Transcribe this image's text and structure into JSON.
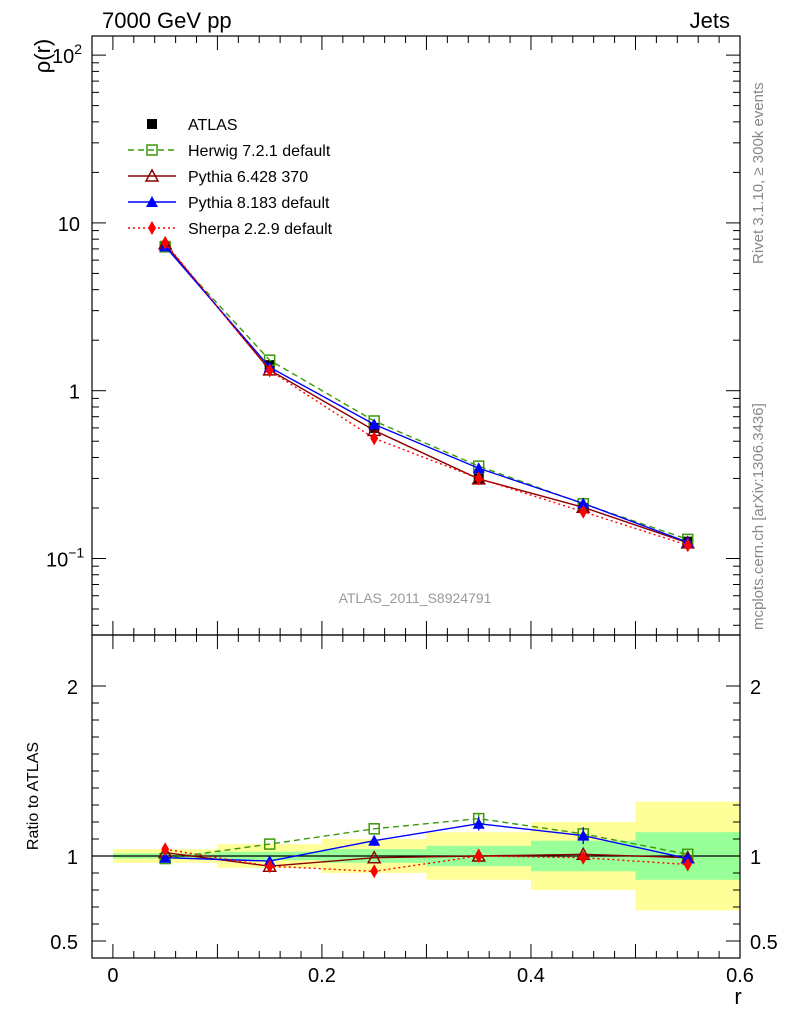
{
  "header": {
    "left_title": "7000 GeV pp",
    "right_title": "Jets",
    "side_text_1": "Rivet 3.1.10, ≥ 300k events",
    "side_text_2": "mcplots.cern.ch [arXiv:1306.3436]",
    "watermark": "ATLAS_2011_S8924791"
  },
  "chart_data": [
    {
      "type": "line",
      "scale": "log",
      "ylabel": "ρ(r)",
      "xlabel": "r",
      "xlim": [
        -0.02,
        0.6
      ],
      "ylim": [
        0.035,
        130
      ],
      "yticks": [
        {
          "value": 0.1,
          "base": "10",
          "exp": "−1"
        },
        {
          "value": 1,
          "label": "1"
        },
        {
          "value": 10,
          "label": "10"
        },
        {
          "value": 100,
          "base": "10",
          "exp": "2"
        }
      ],
      "x": [
        0.05,
        0.15,
        0.25,
        0.35,
        0.45,
        0.55
      ],
      "series": [
        {
          "name": "ATLAS",
          "color": "#000000",
          "marker": "square-filled",
          "line": "none",
          "values": [
            7.3,
            1.42,
            0.6,
            0.3,
            0.2,
            0.126
          ]
        },
        {
          "name": "Herwig 7.2.1 default",
          "color": "#3a9a0a",
          "marker": "square-open",
          "line": "dashed",
          "values": [
            7.2,
            1.52,
            0.66,
            0.355,
            0.212,
            0.13
          ]
        },
        {
          "name": "Pythia 6.428 370",
          "color": "#8b0000",
          "marker": "triangle-open",
          "line": "solid",
          "values": [
            7.5,
            1.33,
            0.58,
            0.298,
            0.202,
            0.124
          ]
        },
        {
          "name": "Pythia 8.183 default",
          "color": "#0000ff",
          "marker": "triangle-filled",
          "line": "solid",
          "values": [
            7.25,
            1.38,
            0.63,
            0.345,
            0.213,
            0.125
          ]
        },
        {
          "name": "Sherpa 2.2.9 default",
          "color": "#ff0000",
          "marker": "diamond-filled",
          "line": "dotted",
          "values": [
            7.6,
            1.32,
            0.52,
            0.3,
            0.19,
            0.12
          ]
        }
      ]
    },
    {
      "type": "line",
      "ylabel": "Ratio to ATLAS",
      "xlabel": "r",
      "xlim": [
        -0.02,
        0.6
      ],
      "ylim": [
        0.4,
        2.3
      ],
      "yticks": [
        0.5,
        1,
        2
      ],
      "xticks": [
        0,
        0.2,
        0.4,
        0.6
      ],
      "x": [
        0.05,
        0.15,
        0.25,
        0.35,
        0.45,
        0.55
      ],
      "bands": [
        {
          "x0": 0.0,
          "x1": 0.1,
          "stat": [
            0.985,
            1.015
          ],
          "total": [
            0.96,
            1.04
          ]
        },
        {
          "x0": 0.1,
          "x1": 0.2,
          "stat": [
            0.975,
            1.025
          ],
          "total": [
            0.93,
            1.07
          ]
        },
        {
          "x0": 0.2,
          "x1": 0.3,
          "stat": [
            0.96,
            1.04
          ],
          "total": [
            0.9,
            1.1
          ]
        },
        {
          "x0": 0.3,
          "x1": 0.4,
          "stat": [
            0.94,
            1.06
          ],
          "total": [
            0.86,
            1.14
          ]
        },
        {
          "x0": 0.4,
          "x1": 0.5,
          "stat": [
            0.91,
            1.09
          ],
          "total": [
            0.8,
            1.2
          ]
        },
        {
          "x0": 0.5,
          "x1": 0.6,
          "stat": [
            0.86,
            1.14
          ],
          "total": [
            0.68,
            1.32
          ]
        }
      ],
      "series": [
        {
          "name": "Herwig 7.2.1 default",
          "values": [
            0.985,
            1.07,
            1.16,
            1.22,
            1.13,
            1.01
          ],
          "errors": [
            0,
            0,
            0,
            0.03,
            0.03,
            0
          ]
        },
        {
          "name": "Pythia 6.428 370",
          "values": [
            1.02,
            0.94,
            0.99,
            1.0,
            1.01,
            0.99
          ],
          "errors": [
            0,
            0,
            0,
            0,
            0,
            0
          ]
        },
        {
          "name": "Pythia 8.183 default",
          "values": [
            0.99,
            0.97,
            1.09,
            1.19,
            1.12,
            0.985
          ],
          "errors": [
            0,
            0.02,
            0.03,
            0.04,
            0.05,
            0.02
          ]
        },
        {
          "name": "Sherpa 2.2.9 default",
          "values": [
            1.04,
            0.94,
            0.91,
            1.0,
            0.99,
            0.95
          ],
          "errors": [
            0,
            0,
            0,
            0,
            0,
            0
          ]
        }
      ]
    }
  ]
}
